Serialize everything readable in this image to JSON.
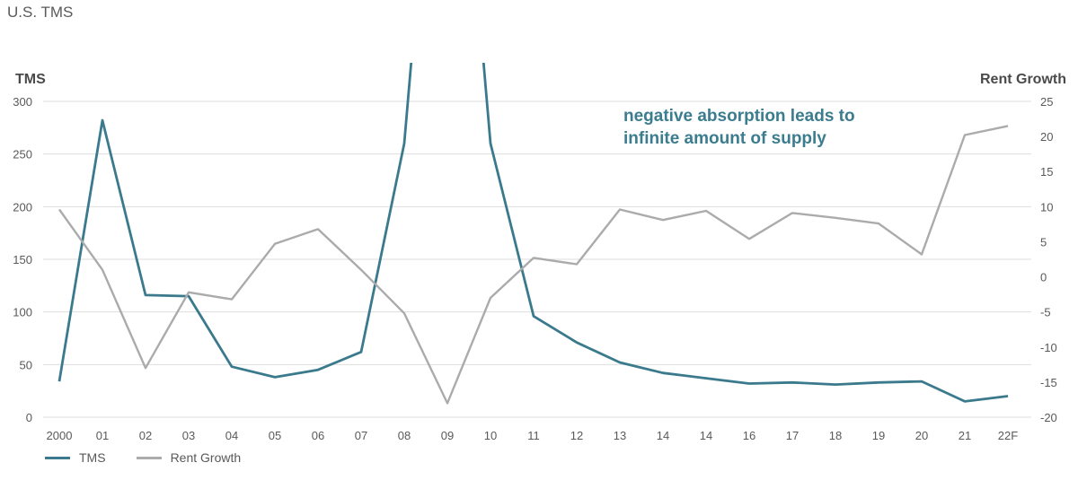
{
  "title": "U.S. TMS",
  "chart_data": {
    "type": "line",
    "title": "U.S. TMS",
    "annotation": [
      "negative absorption leads to",
      "infinite amount of supply"
    ],
    "categories": [
      "2000",
      "01",
      "02",
      "03",
      "04",
      "05",
      "06",
      "07",
      "08",
      "09",
      "10",
      "11",
      "12",
      "13",
      "14",
      "14",
      "16",
      "17",
      "18",
      "19",
      "20",
      "21",
      "22F"
    ],
    "y_left": {
      "label": "TMS",
      "range": [
        0,
        300
      ],
      "ticks": [
        0,
        50,
        100,
        150,
        200,
        250,
        300
      ]
    },
    "y_right": {
      "label": "Rent Growth",
      "range": [
        -20,
        25
      ],
      "ticks": [
        -20,
        -15,
        -10,
        -5,
        0,
        5,
        10,
        15,
        20,
        25
      ]
    },
    "grid": true,
    "legend_position": "bottom-left",
    "series": [
      {
        "name": "TMS",
        "axis": "left",
        "color": "#3a7a8c",
        "values": [
          34,
          282,
          116,
          115,
          48,
          38,
          45,
          62,
          260,
          null,
          260,
          96,
          71,
          52,
          42,
          37,
          32,
          33,
          31,
          33,
          34,
          15,
          20
        ],
        "note": "values between 08 and 10 exceed the axis maximum and are clipped at the top"
      },
      {
        "name": "Rent Growth",
        "axis": "right",
        "color": "#ababab",
        "values": [
          9.6,
          1.0,
          -13.0,
          -2.2,
          -3.2,
          4.7,
          6.8,
          1.0,
          -5.2,
          -18.0,
          -3.0,
          2.7,
          1.8,
          9.6,
          8.1,
          9.4,
          5.4,
          9.1,
          8.4,
          7.6,
          3.2,
          20.2,
          21.5
        ]
      }
    ]
  }
}
